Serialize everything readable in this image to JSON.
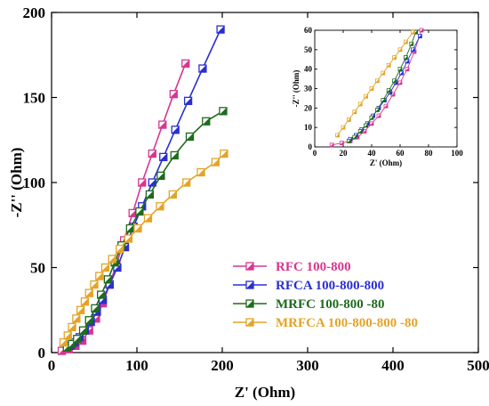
{
  "chart_data": [
    {
      "type": "scatter",
      "xlabel": "Z' (Ohm)",
      "ylabel": "-Z'' (Ohm)",
      "xlim": [
        0,
        500
      ],
      "ylim": [
        0,
        200
      ],
      "xticks": [
        "0",
        "100",
        "200",
        "300",
        "400",
        "500"
      ],
      "yticks": [
        "0",
        "50",
        "100",
        "150",
        "200"
      ],
      "legend": "bottom-right",
      "series": [
        {
          "name": "RFC 100-800",
          "color": "#d6368f",
          "x": [
            12,
            20,
            28,
            36,
            44,
            52,
            60,
            68,
            76,
            85,
            95,
            106,
            118,
            130,
            143,
            157
          ],
          "y": [
            1,
            2,
            4,
            7,
            13,
            20,
            29,
            40,
            52,
            66,
            82,
            100,
            117,
            134,
            152,
            170
          ]
        },
        {
          "name": "RFCA 100-800-800",
          "color": "#2a2ed1",
          "x": [
            22,
            27,
            33,
            39,
            46,
            53,
            60,
            68,
            77,
            86,
            96,
            106,
            118,
            131,
            145,
            160,
            177,
            198
          ],
          "y": [
            4,
            6,
            9,
            13,
            18,
            24,
            31,
            40,
            50,
            62,
            74,
            86,
            100,
            115,
            131,
            148,
            167,
            190
          ]
        },
        {
          "name": "MRFC 100-800 -80",
          "color": "#1e6b1e",
          "x": [
            18,
            24,
            30,
            37,
            44,
            51,
            58,
            66,
            74,
            82,
            92,
            103,
            115,
            128,
            144,
            162,
            181,
            201
          ],
          "y": [
            3,
            5,
            8,
            13,
            19,
            26,
            34,
            43,
            53,
            63,
            73,
            83,
            93,
            104,
            116,
            127,
            136,
            142
          ]
        },
        {
          "name": "MRFCA 100-800-800 -80",
          "color": "#e3a426",
          "x": [
            14,
            19,
            24,
            29,
            34,
            39,
            44,
            50,
            56,
            63,
            71,
            80,
            90,
            101,
            113,
            127,
            142,
            158,
            175,
            192,
            202
          ],
          "y": [
            6,
            10,
            15,
            20,
            25,
            30,
            35,
            40,
            45,
            50,
            55,
            61,
            67,
            73,
            79,
            86,
            93,
            100,
            106,
            112,
            117
          ]
        }
      ]
    },
    {
      "type": "scatter",
      "xlabel": "Z' (Ohm)",
      "ylabel": "-Z'' (Ohm)",
      "xlim": [
        0,
        100
      ],
      "ylim": [
        0,
        60
      ],
      "xticks": [
        "0",
        "20",
        "40",
        "60",
        "80",
        "100"
      ],
      "yticks": [
        "0",
        "10",
        "20",
        "30",
        "40",
        "50",
        "60"
      ],
      "series": [
        {
          "color": "#d6368f",
          "x": [
            12,
            19,
            25,
            30,
            35,
            40,
            45,
            50,
            55,
            60,
            65,
            70,
            75
          ],
          "y": [
            1,
            2,
            3,
            5,
            8,
            12,
            16,
            21,
            27,
            33,
            40,
            49,
            60
          ]
        },
        {
          "color": "#2a2ed1",
          "x": [
            25,
            29,
            33,
            37,
            41,
            45,
            49,
            53,
            57,
            61,
            65,
            69,
            74
          ],
          "y": [
            4,
            6,
            9,
            12,
            16,
            20,
            24,
            28,
            33,
            38,
            44,
            50,
            57
          ]
        },
        {
          "color": "#1e6b1e",
          "x": [
            24,
            28,
            32,
            36,
            40,
            44,
            48,
            52,
            56,
            60,
            64,
            68,
            71
          ],
          "y": [
            3,
            5,
            8,
            11,
            15,
            19,
            24,
            29,
            34,
            40,
            46,
            53,
            59
          ]
        },
        {
          "color": "#e3a426",
          "x": [
            16,
            20,
            24,
            28,
            32,
            36,
            40,
            44,
            48,
            52,
            56,
            60,
            64,
            69
          ],
          "y": [
            6,
            10,
            14,
            18,
            22,
            26,
            30,
            34,
            38,
            42,
            46,
            50,
            54,
            59
          ]
        }
      ]
    }
  ]
}
